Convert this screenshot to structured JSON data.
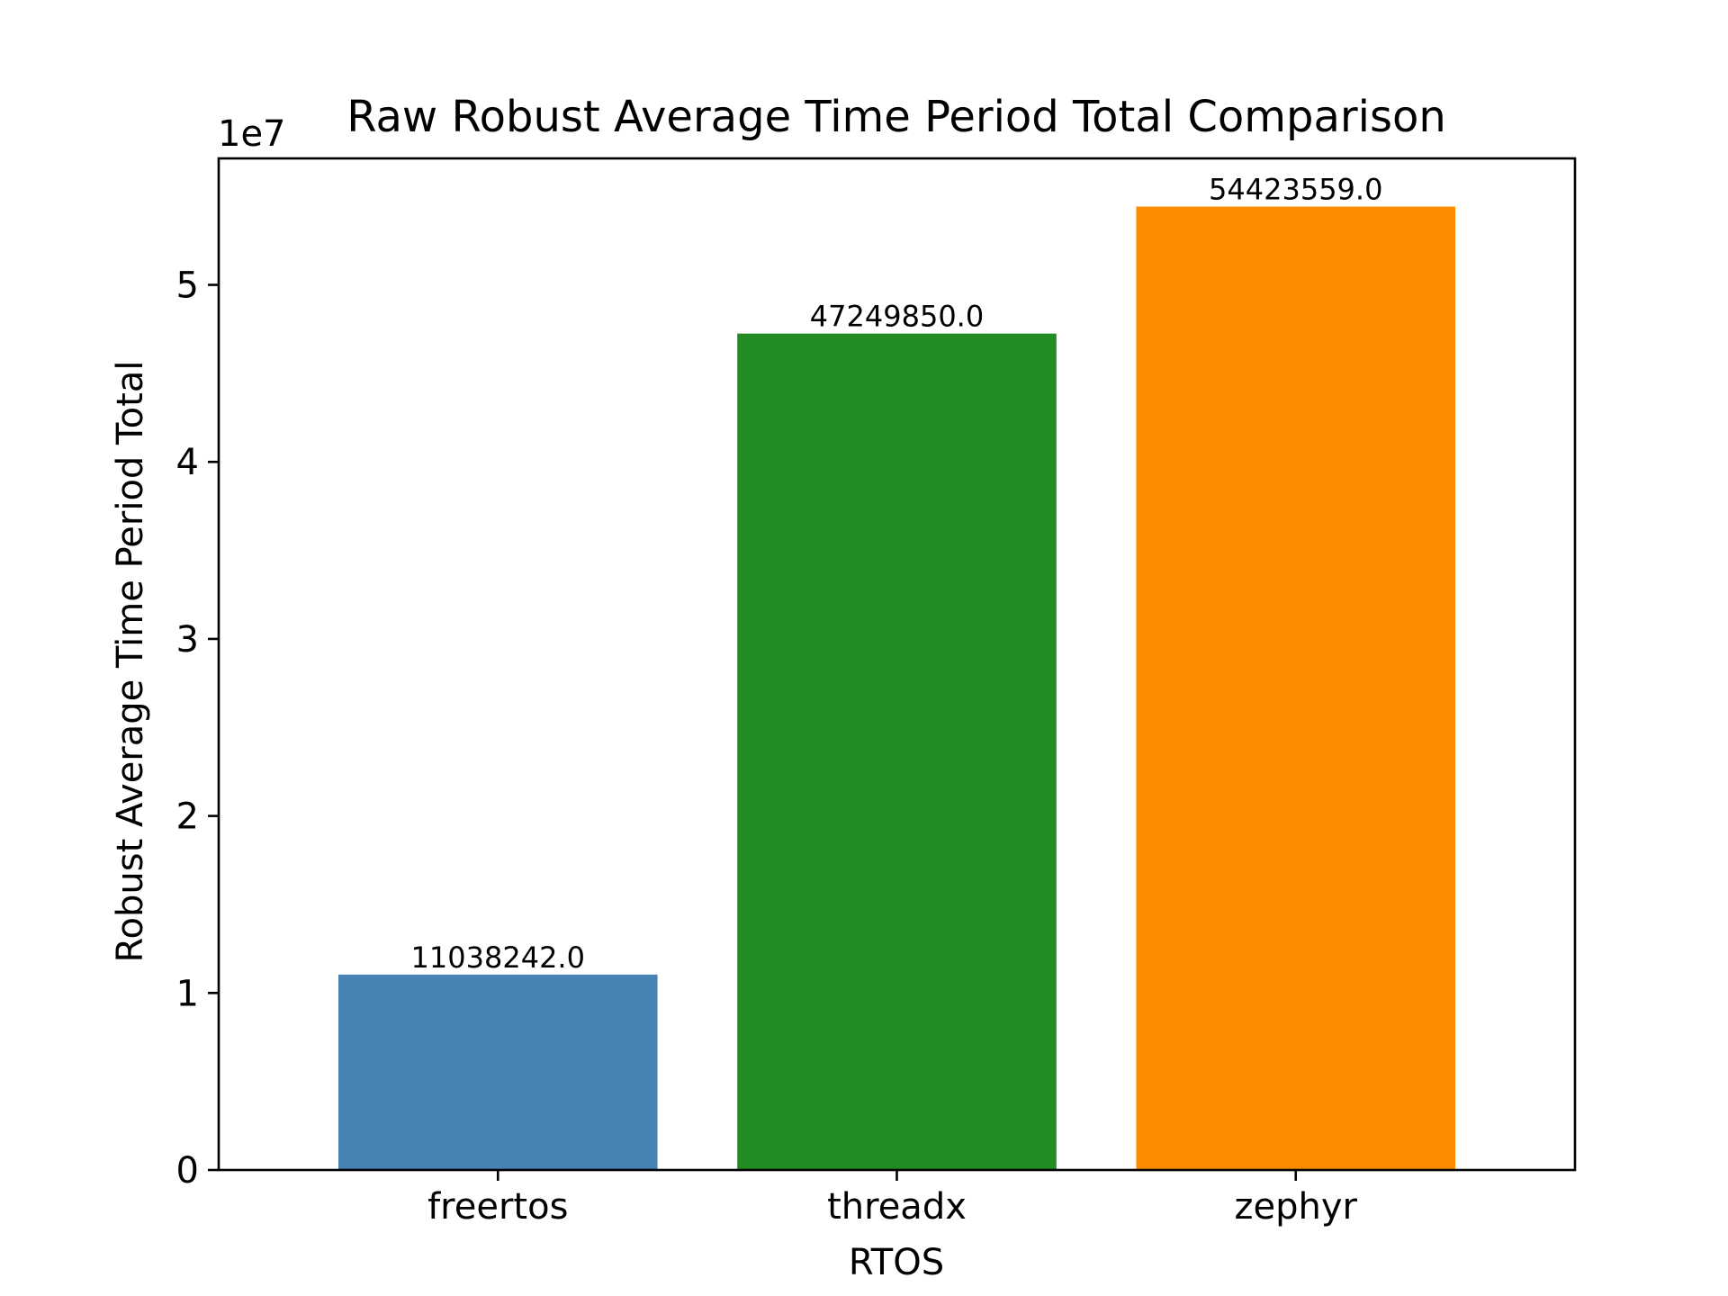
{
  "chart_data": {
    "type": "bar",
    "title": "Raw Robust Average Time Period Total Comparison",
    "xlabel": "RTOS",
    "ylabel": "Robust Average Time Period Total",
    "offset_label": "1e7",
    "categories": [
      "freertos",
      "threadx",
      "zephyr"
    ],
    "values": [
      11038242.0,
      47249850.0,
      54423559.0
    ],
    "value_labels": [
      "11038242.0",
      "47249850.0",
      "54423559.0"
    ],
    "colors": [
      "#4682b4",
      "#228b22",
      "#ff8c00"
    ],
    "yticks": [
      0,
      1,
      2,
      3,
      4,
      5
    ],
    "ytick_labels": [
      "0",
      "1",
      "2",
      "3",
      "4",
      "5"
    ],
    "ytick_multiplier": 10000000,
    "ylim": [
      0,
      57144736.95
    ],
    "grid": false,
    "legend": false
  }
}
